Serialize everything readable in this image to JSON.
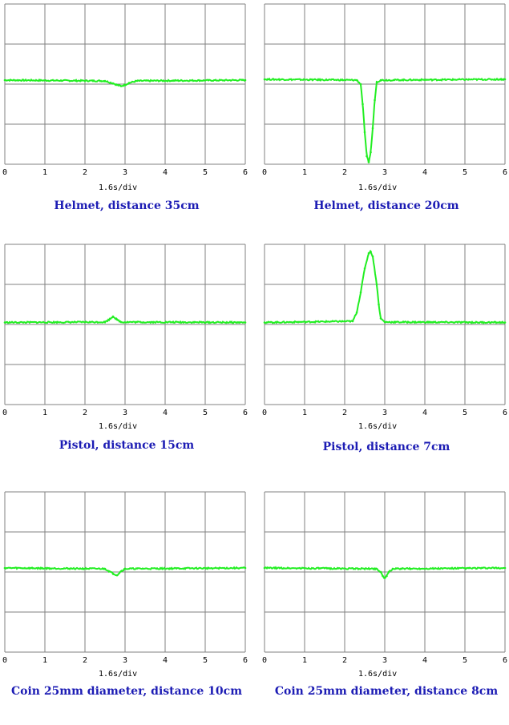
{
  "colors": {
    "trace": "#22ee22",
    "grid": "#808080",
    "caption": "#1c1cb4",
    "background": "#ffffff"
  },
  "chart_data": [
    {
      "type": "line",
      "title": "Helmet, distance 35cm",
      "xlabel": "1.6s/div",
      "xlim": [
        0,
        6
      ],
      "ylim": [
        0,
        4
      ],
      "xticks": [
        "0",
        "1",
        "2",
        "3",
        "4",
        "5",
        "6"
      ],
      "grid": true,
      "baseline": 2.1,
      "x": [
        0,
        2.5,
        2.7,
        2.8,
        2.9,
        3.0,
        3.1,
        3.3,
        6
      ],
      "y": [
        2.1,
        2.08,
        2.02,
        1.98,
        1.95,
        1.98,
        2.03,
        2.08,
        2.1
      ]
    },
    {
      "type": "line",
      "title": "Helmet, distance 20cm",
      "xlabel": "1.6s/div",
      "xlim": [
        0,
        6
      ],
      "ylim": [
        0,
        4
      ],
      "xticks": [
        "0",
        "1",
        "2",
        "3",
        "4",
        "5",
        "6"
      ],
      "grid": true,
      "baseline": 2.12,
      "x": [
        0,
        2.3,
        2.4,
        2.45,
        2.5,
        2.55,
        2.6,
        2.65,
        2.7,
        2.75,
        2.8,
        2.9,
        6
      ],
      "y": [
        2.12,
        2.1,
        2.0,
        1.5,
        0.8,
        0.2,
        0.05,
        0.3,
        0.9,
        1.6,
        2.05,
        2.1,
        2.12
      ]
    },
    {
      "type": "line",
      "title": "Pistol, distance 15cm",
      "xlabel": "1.6s/div",
      "xlim": [
        0,
        6
      ],
      "ylim": [
        0,
        4
      ],
      "xticks": [
        "0",
        "1",
        "2",
        "3",
        "4",
        "5",
        "6"
      ],
      "grid": true,
      "baseline": 2.05,
      "x": [
        0,
        2.5,
        2.6,
        2.7,
        2.8,
        2.9,
        6
      ],
      "y": [
        2.05,
        2.06,
        2.12,
        2.2,
        2.12,
        2.06,
        2.05
      ]
    },
    {
      "type": "line",
      "title": "Pistol, distance 7cm",
      "xlabel": "1.6s/div",
      "xlim": [
        0,
        6
      ],
      "ylim": [
        0,
        4
      ],
      "xticks": [
        "0",
        "1",
        "2",
        "3",
        "4",
        "5",
        "6"
      ],
      "grid": true,
      "baseline": 2.05,
      "x": [
        0,
        2.2,
        2.3,
        2.4,
        2.5,
        2.6,
        2.65,
        2.7,
        2.8,
        2.85,
        2.9,
        3.0,
        6
      ],
      "y": [
        2.05,
        2.08,
        2.3,
        2.8,
        3.4,
        3.78,
        3.82,
        3.7,
        3.0,
        2.5,
        2.15,
        2.06,
        2.05
      ]
    },
    {
      "type": "line",
      "title": "Coin 25mm diameter, distance 10cm",
      "xlabel": "1.6s/div",
      "xlim": [
        0,
        6
      ],
      "ylim": [
        0,
        4
      ],
      "xticks": [
        "0",
        "1",
        "2",
        "3",
        "4",
        "5",
        "6"
      ],
      "grid": true,
      "baseline": 2.1,
      "x": [
        0,
        2.5,
        2.6,
        2.7,
        2.8,
        2.9,
        3.0,
        6
      ],
      "y": [
        2.1,
        2.08,
        2.02,
        1.96,
        1.92,
        2.02,
        2.08,
        2.1
      ]
    },
    {
      "type": "line",
      "title": "Coin 25mm diameter, distance 8cm",
      "xlabel": "1.6s/div",
      "xlim": [
        0,
        6
      ],
      "ylim": [
        0,
        4
      ],
      "xticks": [
        "0",
        "1",
        "2",
        "3",
        "4",
        "5",
        "6"
      ],
      "grid": true,
      "baseline": 2.1,
      "x": [
        0,
        2.8,
        2.9,
        2.95,
        3.0,
        3.05,
        3.1,
        3.2,
        6
      ],
      "y": [
        2.1,
        2.08,
        2.0,
        1.9,
        1.85,
        1.9,
        2.0,
        2.08,
        2.1
      ]
    }
  ]
}
